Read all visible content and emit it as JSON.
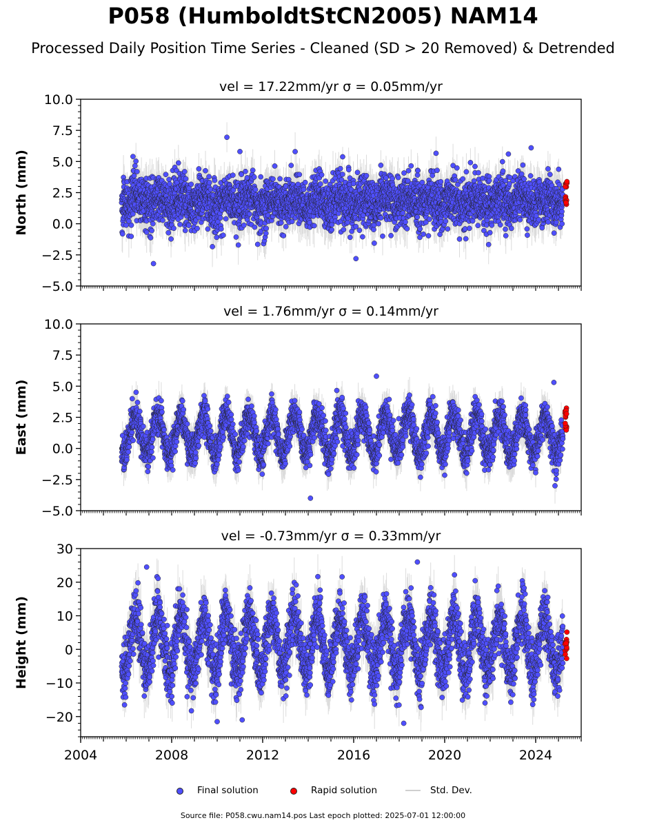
{
  "title": "P058 (HumboldtStCN2005) NAM14",
  "subtitle": "Processed Daily Position Time Series - Cleaned (SD > 20 Removed) & Detrended",
  "source_note": "Source file: P058.cwu.nam14.pos  Last epoch plotted: 2025-07-01 12:00:00",
  "legend": {
    "final": "Final solution",
    "rapid": "Rapid solution",
    "std": "Std. Dev."
  },
  "colors": {
    "final": "#4f4fff",
    "rapid": "#ff0000",
    "std": "#bfbfbf"
  },
  "chart_data": [
    {
      "type": "scatter",
      "component": "north",
      "title": "vel = 17.22mm/yr   σ = 0.05mm/yr",
      "ylabel": "North (mm)",
      "ylim": [
        -5,
        10
      ],
      "yticks": [
        -5.0,
        -2.5,
        0.0,
        2.5,
        5.0,
        7.5,
        10.0
      ],
      "ytick_labels": [
        "−5.0",
        "−2.5",
        "0.0",
        "2.5",
        "5.0",
        "7.5",
        "10.0"
      ],
      "xlim": [
        2004,
        2026
      ],
      "x_start": 2005.8,
      "x_end": 2025.5,
      "x_rapid_start": 2025.2,
      "mean": 1.8,
      "annual_amplitude": 0.4,
      "noise": 1.0,
      "sd_mean": 1.2,
      "rapid_range": [
        1.5,
        3.5
      ],
      "outliers": [
        {
          "x": 2006.3,
          "y": 5.4
        },
        {
          "x": 2007.2,
          "y": -3.2
        },
        {
          "x": 2011.0,
          "y": 5.8
        },
        {
          "x": 2016.1,
          "y": -2.8
        },
        {
          "x": 2023.8,
          "y": 6.1
        },
        {
          "x": 2022.8,
          "y": 5.6
        }
      ]
    },
    {
      "type": "scatter",
      "component": "east",
      "title": "vel = 1.76mm/yr   σ = 0.14mm/yr",
      "ylabel": "East (mm)",
      "ylim": [
        -5,
        10
      ],
      "yticks": [
        -5.0,
        -2.5,
        0.0,
        2.5,
        5.0,
        7.5,
        10.0
      ],
      "ytick_labels": [
        "−5.0",
        "−2.5",
        "0.0",
        "2.5",
        "5.0",
        "7.5",
        "10.0"
      ],
      "xlim": [
        2004,
        2026
      ],
      "x_start": 2005.8,
      "x_end": 2025.5,
      "x_rapid_start": 2025.2,
      "mean": 1.1,
      "annual_amplitude": 1.6,
      "noise": 0.7,
      "sd_mean": 1.0,
      "rapid_range": [
        1.4,
        3.3
      ],
      "outliers": [
        {
          "x": 2014.1,
          "y": -4.0
        },
        {
          "x": 2024.8,
          "y": 5.3
        },
        {
          "x": 2017.0,
          "y": 5.8
        }
      ]
    },
    {
      "type": "scatter",
      "component": "height",
      "title": "vel = -0.73mm/yr   σ = 0.33mm/yr",
      "ylabel": "Height (mm)",
      "ylim": [
        -26,
        30
      ],
      "yticks": [
        -20,
        -10,
        0,
        10,
        20,
        30
      ],
      "ytick_labels": [
        "−20",
        "−10",
        "0",
        "10",
        "20",
        "30"
      ],
      "xlim": [
        2004,
        2026
      ],
      "xticks": [
        2004,
        2008,
        2012,
        2016,
        2020,
        2024
      ],
      "xtick_labels": [
        "2004",
        "2008",
        "2012",
        "2016",
        "2020",
        "2024"
      ],
      "x_start": 2005.8,
      "x_end": 2025.5,
      "x_rapid_start": 2025.2,
      "mean": 1.5,
      "annual_amplitude": 8.5,
      "noise": 4.0,
      "sd_mean": 5.0,
      "rapid_range": [
        -3.5,
        7.0
      ],
      "outliers": [
        {
          "x": 2018.8,
          "y": 26.0
        },
        {
          "x": 2010.0,
          "y": -21.5
        },
        {
          "x": 2011.1,
          "y": -21.0
        },
        {
          "x": 2018.2,
          "y": -22.0
        },
        {
          "x": 2006.9,
          "y": 24.5
        }
      ]
    }
  ]
}
